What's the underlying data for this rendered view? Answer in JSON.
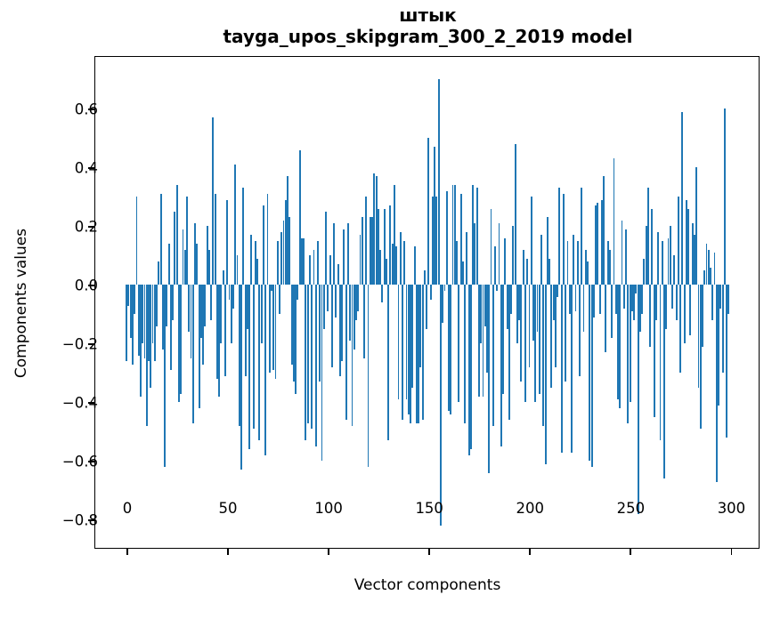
{
  "figure": {
    "background": "#ffffff",
    "title_line1": "штык",
    "title_line2": "tayga_upos_skipgram_300_2_2019 model"
  },
  "chart_data": {
    "type": "bar",
    "title": "штык",
    "subtitle": "tayga_upos_skipgram_300_2_2019 model",
    "xlabel": "Vector components",
    "ylabel": "Components values",
    "legend": null,
    "grid": false,
    "bar_color": "#1f77b4",
    "spine_color": "#000000",
    "n_components": 300,
    "xlim": [
      -15.45,
      313.95
    ],
    "ylim": [
      -0.896,
      0.776
    ],
    "x_ticks": [
      {
        "value": 0,
        "label": "0"
      },
      {
        "value": 50,
        "label": "50"
      },
      {
        "value": 100,
        "label": "100"
      },
      {
        "value": 150,
        "label": "150"
      },
      {
        "value": 200,
        "label": "200"
      },
      {
        "value": 250,
        "label": "250"
      },
      {
        "value": 300,
        "label": "300"
      }
    ],
    "y_ticks": [
      {
        "value": 0.6,
        "label": "0.6"
      },
      {
        "value": 0.4,
        "label": "0.4"
      },
      {
        "value": 0.2,
        "label": "0.2"
      },
      {
        "value": 0.0,
        "label": "0.0"
      },
      {
        "value": -0.2,
        "label": "−0.2"
      },
      {
        "value": -0.4,
        "label": "−0.4"
      },
      {
        "value": -0.6,
        "label": "−0.6"
      },
      {
        "value": -0.8,
        "label": "−0.8"
      }
    ],
    "values": [
      -0.26,
      -0.07,
      -0.18,
      -0.27,
      -0.1,
      0.3,
      -0.24,
      -0.38,
      -0.2,
      -0.25,
      -0.48,
      -0.26,
      -0.35,
      -0.2,
      -0.26,
      -0.14,
      0.08,
      0.31,
      -0.22,
      -0.62,
      -0.14,
      0.14,
      -0.29,
      -0.12,
      0.25,
      0.34,
      -0.4,
      -0.37,
      0.19,
      0.12,
      0.3,
      -0.16,
      -0.25,
      -0.47,
      0.21,
      0.14,
      -0.42,
      -0.18,
      -0.27,
      -0.14,
      0.2,
      0.12,
      -0.12,
      0.57,
      0.31,
      -0.32,
      -0.38,
      -0.2,
      0.05,
      -0.31,
      0.29,
      -0.05,
      -0.2,
      -0.08,
      0.41,
      0.1,
      -0.48,
      -0.63,
      0.33,
      -0.31,
      -0.15,
      -0.56,
      0.17,
      -0.49,
      0.15,
      0.09,
      -0.53,
      -0.2,
      0.27,
      -0.58,
      0.31,
      -0.3,
      -0.02,
      -0.29,
      -0.32,
      0.15,
      -0.1,
      0.18,
      0.22,
      0.29,
      0.37,
      0.23,
      -0.27,
      -0.33,
      -0.37,
      -0.05,
      0.46,
      0.16,
      0.16,
      -0.53,
      -0.47,
      0.1,
      -0.49,
      0.12,
      -0.55,
      0.15,
      -0.33,
      -0.6,
      -0.15,
      0.25,
      -0.09,
      0.1,
      -0.28,
      0.21,
      -0.11,
      0.07,
      -0.31,
      -0.26,
      0.19,
      -0.46,
      0.21,
      -0.19,
      -0.48,
      -0.22,
      -0.12,
      -0.09,
      0.17,
      0.23,
      -0.25,
      0.3,
      -0.62,
      0.23,
      0.23,
      0.38,
      0.37,
      0.26,
      0.12,
      -0.06,
      0.26,
      0.09,
      -0.53,
      0.27,
      0.14,
      0.34,
      0.13,
      -0.39,
      0.18,
      -0.46,
      0.15,
      -0.39,
      -0.44,
      -0.47,
      -0.35,
      0.13,
      -0.47,
      -0.47,
      -0.28,
      -0.46,
      0.05,
      -0.15,
      0.5,
      -0.05,
      0.3,
      0.47,
      0.3,
      0.7,
      -0.82,
      -0.13,
      -0.02,
      0.32,
      -0.43,
      -0.44,
      0.34,
      0.34,
      0.15,
      -0.4,
      0.31,
      0.08,
      -0.47,
      0.18,
      -0.58,
      -0.56,
      0.34,
      0.21,
      0.33,
      -0.38,
      -0.2,
      -0.38,
      -0.14,
      -0.3,
      -0.64,
      0.26,
      -0.48,
      0.13,
      -0.02,
      0.21,
      -0.55,
      -0.37,
      0.16,
      -0.15,
      -0.46,
      -0.1,
      0.2,
      0.48,
      -0.2,
      -0.12,
      -0.33,
      0.12,
      -0.4,
      0.09,
      -0.28,
      0.3,
      -0.19,
      -0.4,
      -0.16,
      -0.37,
      0.17,
      -0.48,
      -0.61,
      0.23,
      0.09,
      -0.35,
      -0.12,
      -0.28,
      -0.04,
      0.33,
      -0.57,
      0.31,
      -0.33,
      0.15,
      -0.1,
      -0.57,
      0.17,
      -0.09,
      0.15,
      -0.31,
      0.33,
      -0.16,
      0.12,
      0.08,
      -0.6,
      -0.62,
      -0.11,
      0.27,
      0.28,
      -0.1,
      0.29,
      0.37,
      -0.23,
      0.15,
      0.12,
      -0.18,
      0.43,
      -0.1,
      -0.39,
      -0.42,
      0.22,
      -0.08,
      0.19,
      -0.47,
      -0.4,
      -0.09,
      -0.12,
      -0.03,
      -0.78,
      -0.16,
      -0.1,
      0.09,
      0.2,
      0.33,
      -0.21,
      0.26,
      -0.45,
      -0.12,
      0.18,
      -0.53,
      0.15,
      -0.66,
      -0.15,
      0.16,
      0.2,
      -0.08,
      0.1,
      -0.12,
      0.3,
      -0.3,
      0.59,
      -0.2,
      0.29,
      0.26,
      -0.17,
      0.21,
      0.17,
      0.4,
      -0.35,
      -0.49,
      -0.21,
      0.05,
      0.14,
      0.12,
      0.06,
      -0.12,
      0.11,
      -0.67,
      -0.41,
      -0.08,
      -0.3,
      0.6,
      -0.52,
      -0.1
    ]
  }
}
